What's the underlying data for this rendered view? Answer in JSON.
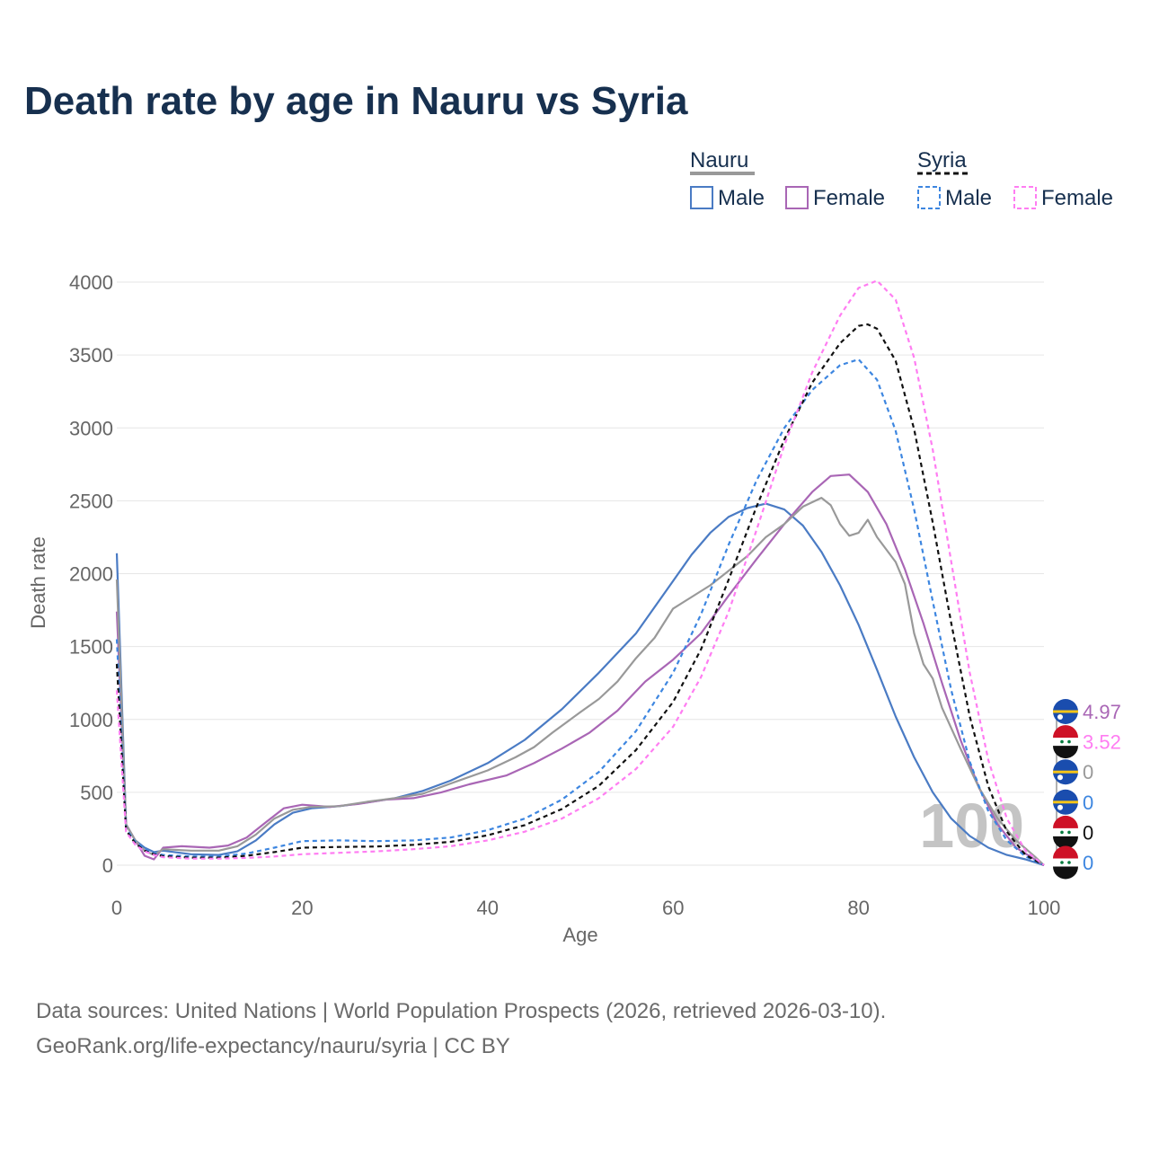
{
  "title": "Death rate by age in Nauru vs Syria",
  "source": {
    "line1": "Data sources: United Nations | World Population Prospects (2026, retrieved 2026-03-10).",
    "line2": "GeoRank.org/life-expectancy/nauru/syria | CC BY"
  },
  "legend": {
    "groups": [
      {
        "country": "Nauru",
        "style": "solid",
        "color": "#999999"
      },
      {
        "country": "Syria",
        "style": "dashed",
        "color": "#111111"
      }
    ],
    "male_label": "Male",
    "female_label": "Female"
  },
  "watermark": "100",
  "chart_data": {
    "type": "line",
    "title": "Death rate by age in Nauru vs Syria",
    "xlabel": "Age",
    "ylabel": "Death rate",
    "xlim": [
      0,
      100
    ],
    "ylim": [
      0,
      4000
    ],
    "xticks": [
      0,
      20,
      40,
      60,
      80,
      100
    ],
    "yticks": [
      0,
      500,
      1000,
      1500,
      2000,
      2500,
      3000,
      3500,
      4000
    ],
    "grid": true,
    "series": [
      {
        "name": "Nauru Male",
        "country": "Nauru",
        "sex": "Male",
        "color": "#4a7bc4",
        "dash": "solid",
        "points": [
          [
            0,
            2140
          ],
          [
            1,
            280
          ],
          [
            2,
            170
          ],
          [
            3,
            120
          ],
          [
            4,
            90
          ],
          [
            5,
            100
          ],
          [
            8,
            75
          ],
          [
            11,
            70
          ],
          [
            13,
            95
          ],
          [
            15,
            170
          ],
          [
            17,
            280
          ],
          [
            19,
            360
          ],
          [
            21,
            390
          ],
          [
            24,
            405
          ],
          [
            27,
            430
          ],
          [
            30,
            460
          ],
          [
            33,
            510
          ],
          [
            36,
            580
          ],
          [
            40,
            700
          ],
          [
            44,
            860
          ],
          [
            48,
            1070
          ],
          [
            52,
            1320
          ],
          [
            56,
            1590
          ],
          [
            60,
            1950
          ],
          [
            62,
            2130
          ],
          [
            64,
            2280
          ],
          [
            66,
            2390
          ],
          [
            68,
            2450
          ],
          [
            70,
            2480
          ],
          [
            72,
            2440
          ],
          [
            74,
            2330
          ],
          [
            76,
            2150
          ],
          [
            78,
            1920
          ],
          [
            80,
            1650
          ],
          [
            82,
            1340
          ],
          [
            84,
            1020
          ],
          [
            86,
            740
          ],
          [
            88,
            500
          ],
          [
            90,
            320
          ],
          [
            92,
            200
          ],
          [
            94,
            120
          ],
          [
            96,
            70
          ],
          [
            98,
            40
          ],
          [
            100,
            0
          ]
        ]
      },
      {
        "name": "Nauru Female",
        "country": "Nauru",
        "sex": "Female",
        "color": "#a966b5",
        "dash": "solid",
        "points": [
          [
            0,
            1740
          ],
          [
            1,
            280
          ],
          [
            2,
            170
          ],
          [
            3,
            65
          ],
          [
            4,
            40
          ],
          [
            5,
            120
          ],
          [
            7,
            130
          ],
          [
            10,
            120
          ],
          [
            12,
            135
          ],
          [
            14,
            190
          ],
          [
            16,
            290
          ],
          [
            18,
            390
          ],
          [
            20,
            415
          ],
          [
            23,
            400
          ],
          [
            26,
            420
          ],
          [
            29,
            450
          ],
          [
            32,
            460
          ],
          [
            35,
            500
          ],
          [
            38,
            555
          ],
          [
            42,
            615
          ],
          [
            45,
            700
          ],
          [
            48,
            800
          ],
          [
            51,
            910
          ],
          [
            54,
            1060
          ],
          [
            57,
            1260
          ],
          [
            60,
            1410
          ],
          [
            63,
            1590
          ],
          [
            66,
            1850
          ],
          [
            69,
            2100
          ],
          [
            72,
            2340
          ],
          [
            75,
            2560
          ],
          [
            77,
            2670
          ],
          [
            79,
            2680
          ],
          [
            81,
            2560
          ],
          [
            83,
            2340
          ],
          [
            85,
            2030
          ],
          [
            87,
            1660
          ],
          [
            89,
            1250
          ],
          [
            91,
            860
          ],
          [
            93,
            530
          ],
          [
            95,
            280
          ],
          [
            97,
            120
          ],
          [
            99,
            40
          ],
          [
            100,
            0
          ]
        ]
      },
      {
        "name": "Nauru Total",
        "country": "Nauru",
        "sex": "Total",
        "color": "#999999",
        "dash": "solid",
        "points": [
          [
            0,
            1960
          ],
          [
            1,
            280
          ],
          [
            2,
            170
          ],
          [
            3,
            100
          ],
          [
            4,
            70
          ],
          [
            5,
            110
          ],
          [
            8,
            100
          ],
          [
            11,
            100
          ],
          [
            13,
            130
          ],
          [
            15,
            210
          ],
          [
            17,
            320
          ],
          [
            19,
            380
          ],
          [
            21,
            400
          ],
          [
            24,
            405
          ],
          [
            27,
            435
          ],
          [
            30,
            460
          ],
          [
            33,
            490
          ],
          [
            36,
            560
          ],
          [
            40,
            650
          ],
          [
            43,
            740
          ],
          [
            45,
            810
          ],
          [
            47,
            910
          ],
          [
            50,
            1050
          ],
          [
            52,
            1140
          ],
          [
            54,
            1260
          ],
          [
            56,
            1420
          ],
          [
            58,
            1560
          ],
          [
            60,
            1760
          ],
          [
            62,
            1840
          ],
          [
            64,
            1920
          ],
          [
            66,
            2020
          ],
          [
            68,
            2120
          ],
          [
            70,
            2250
          ],
          [
            72,
            2340
          ],
          [
            74,
            2460
          ],
          [
            76,
            2520
          ],
          [
            77,
            2470
          ],
          [
            78,
            2340
          ],
          [
            79,
            2260
          ],
          [
            80,
            2280
          ],
          [
            81,
            2370
          ],
          [
            82,
            2250
          ],
          [
            84,
            2080
          ],
          [
            85,
            1930
          ],
          [
            86,
            1590
          ],
          [
            87,
            1380
          ],
          [
            88,
            1280
          ],
          [
            89,
            1080
          ],
          [
            91,
            800
          ],
          [
            93,
            530
          ],
          [
            95,
            320
          ],
          [
            97,
            170
          ],
          [
            99,
            60
          ],
          [
            100,
            0
          ]
        ]
      },
      {
        "name": "Syria Male",
        "country": "Syria",
        "sex": "Male",
        "color": "#3d86e0",
        "dash": "dashed",
        "points": [
          [
            0,
            1550
          ],
          [
            1,
            250
          ],
          [
            2,
            160
          ],
          [
            3,
            110
          ],
          [
            4,
            80
          ],
          [
            5,
            70
          ],
          [
            8,
            60
          ],
          [
            11,
            60
          ],
          [
            14,
            80
          ],
          [
            17,
            120
          ],
          [
            20,
            165
          ],
          [
            24,
            170
          ],
          [
            28,
            165
          ],
          [
            32,
            170
          ],
          [
            36,
            190
          ],
          [
            40,
            240
          ],
          [
            44,
            320
          ],
          [
            48,
            450
          ],
          [
            52,
            640
          ],
          [
            56,
            920
          ],
          [
            60,
            1320
          ],
          [
            63,
            1720
          ],
          [
            66,
            2200
          ],
          [
            69,
            2640
          ],
          [
            72,
            3000
          ],
          [
            75,
            3260
          ],
          [
            78,
            3430
          ],
          [
            80,
            3470
          ],
          [
            82,
            3330
          ],
          [
            84,
            2980
          ],
          [
            86,
            2440
          ],
          [
            88,
            1810
          ],
          [
            90,
            1200
          ],
          [
            92,
            710
          ],
          [
            94,
            370
          ],
          [
            96,
            170
          ],
          [
            98,
            60
          ],
          [
            100,
            0
          ]
        ]
      },
      {
        "name": "Syria Female",
        "country": "Syria",
        "sex": "Female",
        "color": "#ff7df2",
        "dash": "dashed",
        "points": [
          [
            0,
            1200
          ],
          [
            1,
            230
          ],
          [
            2,
            140
          ],
          [
            3,
            95
          ],
          [
            4,
            70
          ],
          [
            5,
            55
          ],
          [
            8,
            45
          ],
          [
            11,
            45
          ],
          [
            14,
            50
          ],
          [
            17,
            60
          ],
          [
            20,
            75
          ],
          [
            24,
            85
          ],
          [
            28,
            95
          ],
          [
            32,
            110
          ],
          [
            36,
            130
          ],
          [
            40,
            170
          ],
          [
            44,
            230
          ],
          [
            48,
            320
          ],
          [
            52,
            460
          ],
          [
            56,
            660
          ],
          [
            60,
            950
          ],
          [
            63,
            1290
          ],
          [
            66,
            1740
          ],
          [
            69,
            2300
          ],
          [
            72,
            2880
          ],
          [
            75,
            3380
          ],
          [
            78,
            3770
          ],
          [
            80,
            3960
          ],
          [
            82,
            4010
          ],
          [
            84,
            3880
          ],
          [
            86,
            3480
          ],
          [
            88,
            2850
          ],
          [
            90,
            2080
          ],
          [
            92,
            1320
          ],
          [
            94,
            720
          ],
          [
            96,
            320
          ],
          [
            98,
            100
          ],
          [
            100,
            0
          ]
        ]
      },
      {
        "name": "Syria Total",
        "country": "Syria",
        "sex": "Total",
        "color": "#111111",
        "dash": "dashed",
        "points": [
          [
            0,
            1380
          ],
          [
            1,
            240
          ],
          [
            2,
            150
          ],
          [
            3,
            100
          ],
          [
            4,
            75
          ],
          [
            5,
            62
          ],
          [
            8,
            52
          ],
          [
            11,
            52
          ],
          [
            14,
            65
          ],
          [
            17,
            90
          ],
          [
            20,
            120
          ],
          [
            24,
            125
          ],
          [
            28,
            128
          ],
          [
            32,
            140
          ],
          [
            36,
            160
          ],
          [
            40,
            205
          ],
          [
            44,
            275
          ],
          [
            48,
            385
          ],
          [
            52,
            545
          ],
          [
            56,
            790
          ],
          [
            60,
            1120
          ],
          [
            63,
            1480
          ],
          [
            66,
            1960
          ],
          [
            69,
            2460
          ],
          [
            72,
            2920
          ],
          [
            75,
            3310
          ],
          [
            78,
            3580
          ],
          [
            80,
            3700
          ],
          [
            81,
            3710
          ],
          [
            82,
            3680
          ],
          [
            84,
            3460
          ],
          [
            86,
            2990
          ],
          [
            88,
            2350
          ],
          [
            90,
            1660
          ],
          [
            92,
            1020
          ],
          [
            94,
            540
          ],
          [
            96,
            230
          ],
          [
            98,
            70
          ],
          [
            100,
            0
          ]
        ]
      }
    ],
    "end_labels": [
      {
        "value": "4.97",
        "country": "Nauru",
        "color": "#a966b5"
      },
      {
        "value": "3.52",
        "country": "Syria",
        "color": "#ff7df2"
      },
      {
        "value": "0",
        "country": "Nauru",
        "color": "#999999"
      },
      {
        "value": "0",
        "country": "Nauru",
        "color": "#3d86e0"
      },
      {
        "value": "0",
        "country": "Syria",
        "color": "#111111"
      },
      {
        "value": "0",
        "country": "Syria",
        "color": "#3d86e0"
      }
    ]
  }
}
